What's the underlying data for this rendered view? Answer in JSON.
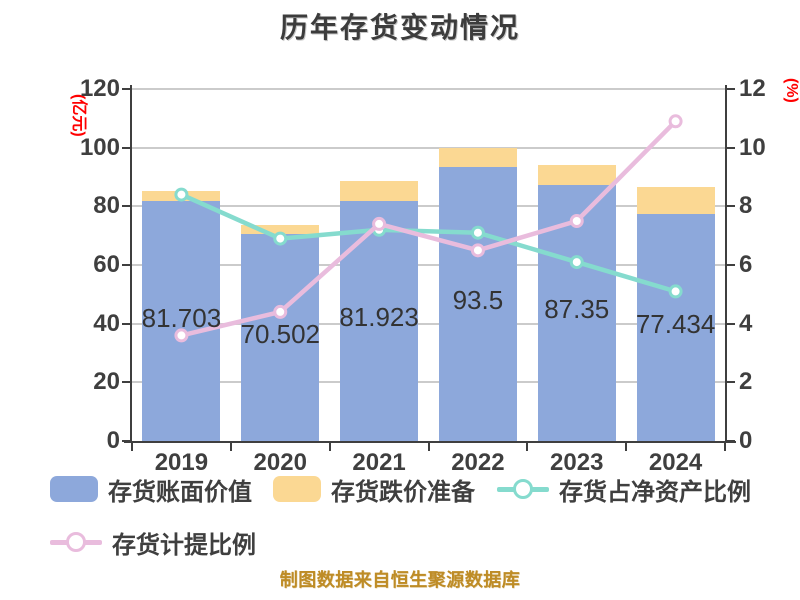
{
  "title": "历年存货变动情况",
  "footer": "制图数据来自恒生聚源数据库",
  "left_axis": {
    "unit": "(亿元)",
    "unit_color": "#ff0000",
    "ticks": [
      "0",
      "20",
      "40",
      "60",
      "80",
      "100",
      "120"
    ]
  },
  "right_axis": {
    "unit": "(%)",
    "unit_color": "#ff0000",
    "ticks": [
      "0",
      "2",
      "4",
      "6",
      "8",
      "10",
      "12"
    ]
  },
  "chart_data": {
    "type": "bar",
    "subtype": "stacked-bar-with-lines",
    "categories": [
      "2019",
      "2020",
      "2021",
      "2022",
      "2023",
      "2024"
    ],
    "series": [
      {
        "name": "存货账面价值",
        "type": "bar",
        "stack": true,
        "axis": "left",
        "color": "#8da8db",
        "values": [
          81.703,
          70.502,
          81.923,
          93.5,
          87.35,
          77.434
        ],
        "labels_shown": [
          "81.703",
          "70.502",
          "81.923",
          "93.5",
          "87.35",
          "77.434"
        ]
      },
      {
        "name": "存货跌价准备",
        "type": "bar",
        "stack": true,
        "axis": "left",
        "color": "#fbd893",
        "values": [
          3.5,
          3.1,
          6.7,
          6.5,
          6.9,
          9.2
        ]
      },
      {
        "name": "存货占净资产比例",
        "type": "line",
        "axis": "right",
        "color": "#85dbce",
        "values": [
          8.4,
          6.9,
          7.2,
          7.1,
          6.1,
          5.1
        ]
      },
      {
        "name": "存货计提比例",
        "type": "line",
        "axis": "right",
        "color": "#e9bcdd",
        "values": [
          3.6,
          4.4,
          7.4,
          6.5,
          7.5,
          10.9
        ]
      }
    ],
    "ylim_left": [
      0,
      120
    ],
    "ylim_right": [
      0,
      12
    ],
    "grid": true,
    "legend_position": "bottom"
  },
  "style_colors": {
    "grid": "#cbcbcb",
    "axis": "#3f3f3f",
    "text": "#3f3f3f"
  }
}
